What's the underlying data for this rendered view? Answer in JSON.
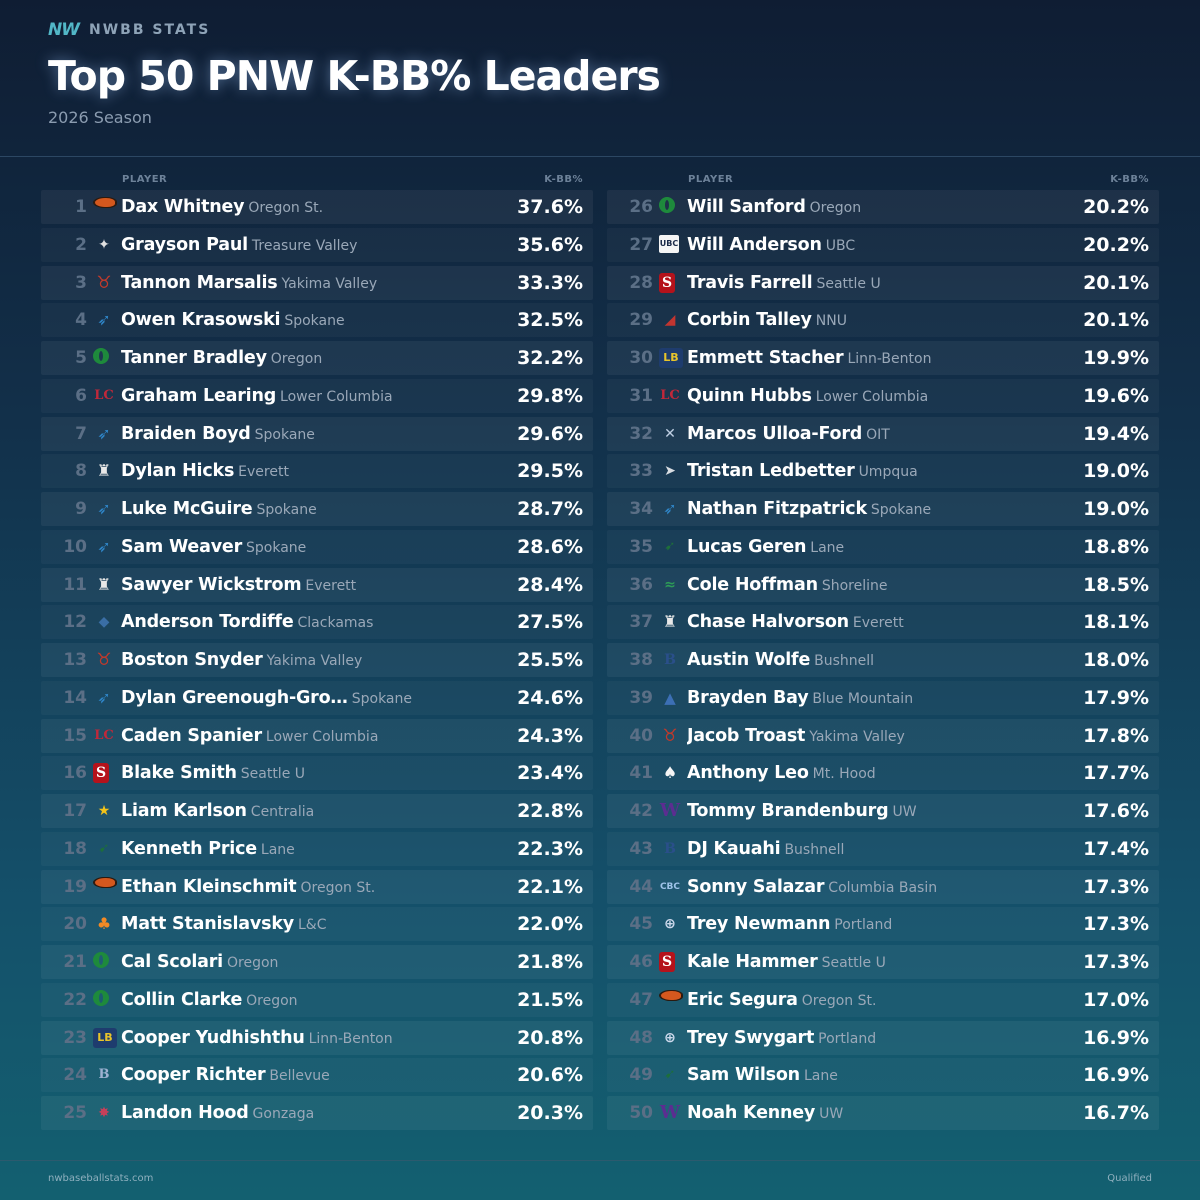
{
  "brand": {
    "logo_text": "NW",
    "name": "NWBB STATS"
  },
  "title": "Top 50 PNW K-BB% Leaders",
  "season": "2026 Season",
  "columns": {
    "player_header": "PLAYER",
    "stat_header": "K-BB%"
  },
  "footer": {
    "site": "nwbaseballstats.com",
    "note": "Qualified"
  },
  "chart_data": {
    "type": "table",
    "title": "Top 50 PNW K-BB% Leaders",
    "subtitle": "2026 Season",
    "columns": [
      "PLAYER",
      "K-BB%"
    ],
    "rows": [
      {
        "rank": "1",
        "name": "Dax Whitney",
        "team": "Oregon St.",
        "value": "37.6%",
        "logo": "beaver"
      },
      {
        "rank": "2",
        "name": "Grayson Paul",
        "team": "Treasure Valley",
        "value": "35.6%",
        "logo": "tv"
      },
      {
        "rank": "3",
        "name": "Tannon Marsalis",
        "team": "Yakima Valley",
        "value": "33.3%",
        "logo": "bull"
      },
      {
        "rank": "4",
        "name": "Owen Krasowski",
        "team": "Spokane",
        "value": "32.5%",
        "logo": "eagle"
      },
      {
        "rank": "5",
        "name": "Tanner Bradley",
        "team": "Oregon",
        "value": "32.2%",
        "logo": "ring"
      },
      {
        "rank": "6",
        "name": "Graham Learing",
        "team": "Lower Columbia",
        "value": "29.8%",
        "logo": "lc"
      },
      {
        "rank": "7",
        "name": "Braiden Boyd",
        "team": "Spokane",
        "value": "29.6%",
        "logo": "eagle"
      },
      {
        "rank": "8",
        "name": "Dylan Hicks",
        "team": "Everett",
        "value": "29.5%",
        "logo": "trojan"
      },
      {
        "rank": "9",
        "name": "Luke McGuire",
        "team": "Spokane",
        "value": "28.7%",
        "logo": "eagle"
      },
      {
        "rank": "10",
        "name": "Sam Weaver",
        "team": "Spokane",
        "value": "28.6%",
        "logo": "eagle"
      },
      {
        "rank": "11",
        "name": "Sawyer Wickstrom",
        "team": "Everett",
        "value": "28.4%",
        "logo": "trojan"
      },
      {
        "rank": "12",
        "name": "Anderson Tordiffe",
        "team": "Clackamas",
        "value": "27.5%",
        "logo": "gator"
      },
      {
        "rank": "13",
        "name": "Boston Snyder",
        "team": "Yakima Valley",
        "value": "25.5%",
        "logo": "bull"
      },
      {
        "rank": "14",
        "name": "Dylan Greenough-Gro…",
        "team": "Spokane",
        "value": "24.6%",
        "logo": "eagle"
      },
      {
        "rank": "15",
        "name": "Caden Spanier",
        "team": "Lower Columbia",
        "value": "24.3%",
        "logo": "lc"
      },
      {
        "rank": "16",
        "name": "Blake Smith",
        "team": "Seattle U",
        "value": "23.4%",
        "logo": "seattle"
      },
      {
        "rank": "17",
        "name": "Liam Karlson",
        "team": "Centralia",
        "value": "22.8%",
        "logo": "cent"
      },
      {
        "rank": "18",
        "name": "Kenneth Price",
        "team": "Lane",
        "value": "22.3%",
        "logo": "lane"
      },
      {
        "rank": "19",
        "name": "Ethan Kleinschmit",
        "team": "Oregon St.",
        "value": "22.1%",
        "logo": "beaver"
      },
      {
        "rank": "20",
        "name": "Matt Stanislavsky",
        "team": "L&C",
        "value": "22.0%",
        "logo": "lc2"
      },
      {
        "rank": "21",
        "name": "Cal Scolari",
        "team": "Oregon",
        "value": "21.8%",
        "logo": "ring"
      },
      {
        "rank": "22",
        "name": "Collin Clarke",
        "team": "Oregon",
        "value": "21.5%",
        "logo": "ring"
      },
      {
        "rank": "23",
        "name": "Cooper Yudhishthu",
        "team": "Linn-Benton",
        "value": "20.8%",
        "logo": "lb"
      },
      {
        "rank": "24",
        "name": "Cooper Richter",
        "team": "Bellevue",
        "value": "20.6%",
        "logo": "bell"
      },
      {
        "rank": "25",
        "name": "Landon Hood",
        "team": "Gonzaga",
        "value": "20.3%",
        "logo": "zag"
      },
      {
        "rank": "26",
        "name": "Will Sanford",
        "team": "Oregon",
        "value": "20.2%",
        "logo": "ring"
      },
      {
        "rank": "27",
        "name": "Will Anderson",
        "team": "UBC",
        "value": "20.2%",
        "logo": "ubc"
      },
      {
        "rank": "28",
        "name": "Travis Farrell",
        "team": "Seattle U",
        "value": "20.1%",
        "logo": "seattle"
      },
      {
        "rank": "29",
        "name": "Corbin Talley",
        "team": "NNU",
        "value": "20.1%",
        "logo": "nnu"
      },
      {
        "rank": "30",
        "name": "Emmett Stacher",
        "team": "Linn-Benton",
        "value": "19.9%",
        "logo": "lb"
      },
      {
        "rank": "31",
        "name": "Quinn Hubbs",
        "team": "Lower Columbia",
        "value": "19.6%",
        "logo": "lc"
      },
      {
        "rank": "32",
        "name": "Marcos Ulloa-Ford",
        "team": "OIT",
        "value": "19.4%",
        "logo": "oit"
      },
      {
        "rank": "33",
        "name": "Tristan Ledbetter",
        "team": "Umpqua",
        "value": "19.0%",
        "logo": "ump"
      },
      {
        "rank": "34",
        "name": "Nathan Fitzpatrick",
        "team": "Spokane",
        "value": "19.0%",
        "logo": "eagle"
      },
      {
        "rank": "35",
        "name": "Lucas Geren",
        "team": "Lane",
        "value": "18.8%",
        "logo": "lane"
      },
      {
        "rank": "36",
        "name": "Cole Hoffman",
        "team": "Shoreline",
        "value": "18.5%",
        "logo": "shore"
      },
      {
        "rank": "37",
        "name": "Chase Halvorson",
        "team": "Everett",
        "value": "18.1%",
        "logo": "trojan"
      },
      {
        "rank": "38",
        "name": "Austin Wolfe",
        "team": "Bushnell",
        "value": "18.0%",
        "logo": "bush"
      },
      {
        "rank": "39",
        "name": "Brayden Bay",
        "team": "Blue Mountain",
        "value": "17.9%",
        "logo": "bm"
      },
      {
        "rank": "40",
        "name": "Jacob Troast",
        "team": "Yakima Valley",
        "value": "17.8%",
        "logo": "bull"
      },
      {
        "rank": "41",
        "name": "Anthony Leo",
        "team": "Mt. Hood",
        "value": "17.7%",
        "logo": "mth"
      },
      {
        "rank": "42",
        "name": "Tommy Brandenburg",
        "team": "UW",
        "value": "17.6%",
        "logo": "uw"
      },
      {
        "rank": "43",
        "name": "DJ Kauahi",
        "team": "Bushnell",
        "value": "17.4%",
        "logo": "bush"
      },
      {
        "rank": "44",
        "name": "Sonny Salazar",
        "team": "Columbia Basin",
        "value": "17.3%",
        "logo": "cbc"
      },
      {
        "rank": "45",
        "name": "Trey Newmann",
        "team": "Portland",
        "value": "17.3%",
        "logo": "port"
      },
      {
        "rank": "46",
        "name": "Kale Hammer",
        "team": "Seattle U",
        "value": "17.3%",
        "logo": "seattle"
      },
      {
        "rank": "47",
        "name": "Eric Segura",
        "team": "Oregon St.",
        "value": "17.0%",
        "logo": "beaver"
      },
      {
        "rank": "48",
        "name": "Trey Swygart",
        "team": "Portland",
        "value": "16.9%",
        "logo": "port"
      },
      {
        "rank": "49",
        "name": "Sam Wilson",
        "team": "Lane",
        "value": "16.9%",
        "logo": "lane"
      },
      {
        "rank": "50",
        "name": "Noah Kenney",
        "team": "UW",
        "value": "16.7%",
        "logo": "uw"
      }
    ]
  },
  "logo_glyphs": {
    "ring": "",
    "beaver": "",
    "bull": "♉",
    "eagle": "➶",
    "lc": "LC",
    "trojan": "♜",
    "gator": "◆",
    "seattle": "S",
    "cent": "★",
    "lane": "➹",
    "lc2": "♣",
    "lb": "LB",
    "bell": "B",
    "zag": "✸",
    "ubc": "UBC",
    "nnu": "◢",
    "oit": "✕",
    "ump": "➤",
    "shore": "≈",
    "bush": "B",
    "bm": "▲",
    "mth": "♠",
    "uw": "W",
    "cbc": "CBC",
    "port": "⊕",
    "tv": "✦"
  },
  "colors": {
    "background_top": "#0f1d33",
    "background_bottom": "#136070",
    "accent": "#52b7c7",
    "rank_text": "#5b6f86",
    "team_text": "#9aa8b8"
  }
}
